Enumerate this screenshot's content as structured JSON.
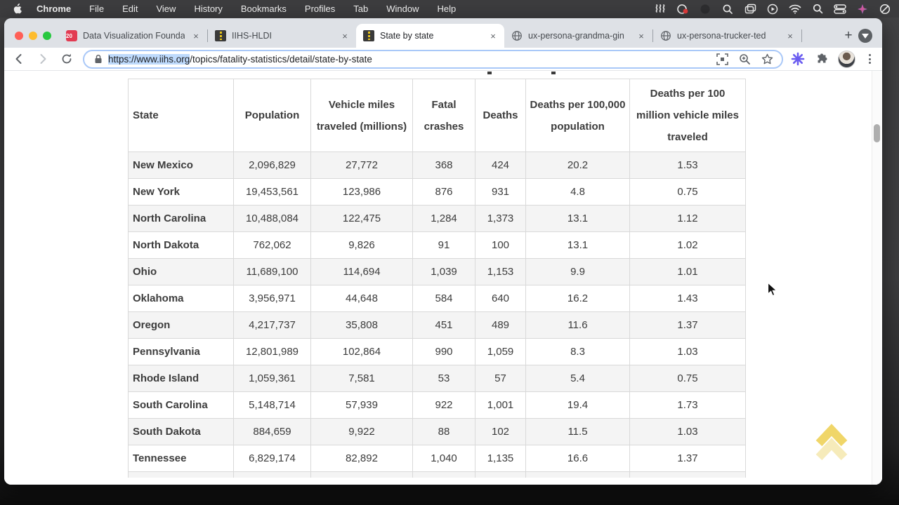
{
  "menu_bar": {
    "items": [
      "Chrome",
      "File",
      "Edit",
      "View",
      "History",
      "Bookmarks",
      "Profiles",
      "Tab",
      "Window",
      "Help"
    ],
    "status_icons": [
      "waves",
      "voice-control",
      "screen-record",
      "zoom",
      "mission-control",
      "play",
      "wifi",
      "spotlight",
      "control-center",
      "assistant",
      "do-not-disturb"
    ]
  },
  "browser": {
    "tabs": [
      {
        "label": "Data Visualization Founda",
        "favicon": "calendar20",
        "active": false
      },
      {
        "label": "IIHS-HLDI",
        "favicon": "road",
        "active": false
      },
      {
        "label": "State by state",
        "favicon": "road",
        "active": true
      },
      {
        "label": "ux-persona-grandma-gin",
        "favicon": "globe",
        "active": false
      },
      {
        "label": "ux-persona-trucker-ted",
        "favicon": "globe",
        "active": false
      }
    ],
    "favicon_calendar_number": "20",
    "close_glyph": "×",
    "new_tab_glyph": "+",
    "toolbar": {
      "url_selected": "https://www.iihs.org",
      "url_rest": "/topics/fatality-statistics/detail/state-by-state"
    }
  },
  "page": {
    "table": {
      "columns": [
        "State",
        "Population",
        "Vehicle miles traveled (millions)",
        "Fatal crashes",
        "Deaths",
        "Deaths per 100,000 population",
        "Deaths per 100 million vehicle miles traveled"
      ],
      "rows": [
        [
          "New Mexico",
          "2,096,829",
          "27,772",
          "368",
          "424",
          "20.2",
          "1.53"
        ],
        [
          "New York",
          "19,453,561",
          "123,986",
          "876",
          "931",
          "4.8",
          "0.75"
        ],
        [
          "North Carolina",
          "10,488,084",
          "122,475",
          "1,284",
          "1,373",
          "13.1",
          "1.12"
        ],
        [
          "North Dakota",
          "762,062",
          "9,826",
          "91",
          "100",
          "13.1",
          "1.02"
        ],
        [
          "Ohio",
          "11,689,100",
          "114,694",
          "1,039",
          "1,153",
          "9.9",
          "1.01"
        ],
        [
          "Oklahoma",
          "3,956,971",
          "44,648",
          "584",
          "640",
          "16.2",
          "1.43"
        ],
        [
          "Oregon",
          "4,217,737",
          "35,808",
          "451",
          "489",
          "11.6",
          "1.37"
        ],
        [
          "Pennsylvania",
          "12,801,989",
          "102,864",
          "990",
          "1,059",
          "8.3",
          "1.03"
        ],
        [
          "Rhode Island",
          "1,059,361",
          "7,581",
          "53",
          "57",
          "5.4",
          "0.75"
        ],
        [
          "South Carolina",
          "5,148,714",
          "57,939",
          "922",
          "1,001",
          "19.4",
          "1.73"
        ],
        [
          "South Dakota",
          "884,659",
          "9,922",
          "88",
          "102",
          "11.5",
          "1.03"
        ],
        [
          "Tennessee",
          "6,829,174",
          "82,892",
          "1,040",
          "1,135",
          "16.6",
          "1.37"
        ]
      ],
      "partial_next_row_visible": true
    }
  },
  "colors": {
    "traffic_red": "#ff5f57",
    "traffic_yellow": "#febc2e",
    "traffic_green": "#28c840",
    "url_selection_blue": "#bedafc",
    "omnibox_focus_ring": "#a9c8f8",
    "road_favicon_yellow": "#e8c41b",
    "scroll_top_chevron_yellow": "#edcf4f",
    "extension_asterisk_purple": "#6a5cf0",
    "row_alt_gray": "#f4f4f4",
    "table_border": "#d9d9d9"
  }
}
